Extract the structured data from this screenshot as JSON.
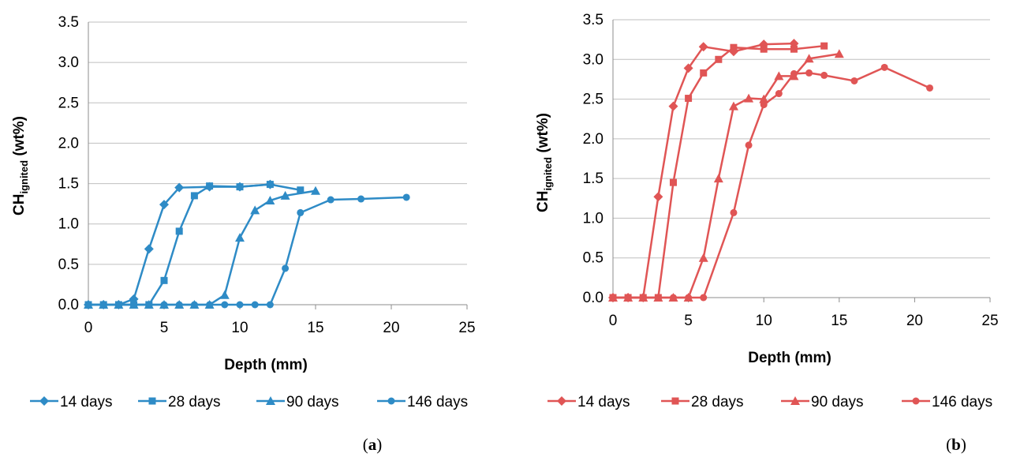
{
  "chart_data": [
    {
      "type": "line",
      "panel_label": {
        "open": "(",
        "letter": "a",
        "close": ")"
      },
      "xlabel": "Depth (mm)",
      "ylabel_main": "CH",
      "ylabel_sub": "ignited",
      "ylabel_tail": " (wt%)",
      "xlim": [
        0,
        25
      ],
      "ylim": [
        0,
        3.5
      ],
      "xticks": [
        "0",
        "5",
        "10",
        "15",
        "20",
        "25"
      ],
      "yticks": [
        "0.0",
        "0.5",
        "1.0",
        "1.5",
        "2.0",
        "2.5",
        "3.0",
        "3.5"
      ],
      "grid": "horizontal",
      "legend_position": "bottom",
      "color": "#2e8bc6",
      "series": [
        {
          "name": "14 days",
          "marker": "diamond",
          "x": [
            0,
            1,
            2,
            3,
            4,
            5,
            6,
            8,
            10,
            12
          ],
          "y": [
            0.0,
            0.0,
            0.0,
            0.07,
            0.69,
            1.24,
            1.45,
            1.46,
            1.46,
            1.49
          ]
        },
        {
          "name": "28 days",
          "marker": "square",
          "x": [
            0,
            1,
            2,
            3,
            4,
            5,
            6,
            7,
            8,
            10,
            12,
            14
          ],
          "y": [
            0.0,
            0.0,
            0.0,
            0.0,
            0.0,
            0.3,
            0.91,
            1.35,
            1.47,
            1.46,
            1.49,
            1.42
          ]
        },
        {
          "name": "90 days",
          "marker": "triangle",
          "x": [
            0,
            1,
            2,
            3,
            4,
            5,
            6,
            7,
            8,
            9,
            10,
            11,
            12,
            13,
            15
          ],
          "y": [
            0.0,
            0.0,
            0.0,
            0.0,
            0.0,
            0.0,
            0.0,
            0.0,
            0.0,
            0.12,
            0.83,
            1.17,
            1.29,
            1.35,
            1.41
          ]
        },
        {
          "name": "146 days",
          "marker": "circle",
          "x": [
            0,
            1,
            2,
            3,
            4,
            5,
            6,
            7,
            8,
            9,
            10,
            11,
            12,
            13,
            14,
            16,
            18,
            21
          ],
          "y": [
            0.0,
            0.0,
            0.0,
            0.0,
            0.0,
            0.0,
            0.0,
            0.0,
            0.0,
            0.0,
            0.0,
            0.0,
            0.0,
            0.45,
            1.14,
            1.3,
            1.31,
            1.33
          ]
        }
      ]
    },
    {
      "type": "line",
      "panel_label": {
        "open": "(",
        "letter": "b",
        "close": ")"
      },
      "xlabel": "Depth (mm)",
      "ylabel_main": "CH",
      "ylabel_sub": "ignited",
      "ylabel_tail": " (wt%)",
      "xlim": [
        0,
        25
      ],
      "ylim": [
        0,
        3.5
      ],
      "xticks": [
        "0",
        "5",
        "10",
        "15",
        "20",
        "25"
      ],
      "yticks": [
        "0.0",
        "0.5",
        "1.0",
        "1.5",
        "2.0",
        "2.5",
        "3.0",
        "3.5"
      ],
      "grid": "horizontal",
      "legend_position": "bottom",
      "color": "#e05555",
      "series": [
        {
          "name": "14 days",
          "marker": "diamond",
          "x": [
            0,
            1,
            2,
            3,
            4,
            5,
            6,
            8,
            10,
            12
          ],
          "y": [
            0.0,
            0.0,
            0.0,
            1.27,
            2.41,
            2.89,
            3.16,
            3.1,
            3.19,
            3.2
          ]
        },
        {
          "name": "28 days",
          "marker": "square",
          "x": [
            0,
            1,
            2,
            3,
            4,
            5,
            6,
            7,
            8,
            10,
            12,
            14
          ],
          "y": [
            0.0,
            0.0,
            0.0,
            0.0,
            1.45,
            2.51,
            2.83,
            3.0,
            3.15,
            3.13,
            3.13,
            3.17
          ]
        },
        {
          "name": "90 days",
          "marker": "triangle",
          "x": [
            0,
            1,
            2,
            3,
            4,
            5,
            6,
            7,
            8,
            9,
            10,
            11,
            12,
            13,
            15
          ],
          "y": [
            0.0,
            0.0,
            0.0,
            0.0,
            0.0,
            0.0,
            0.5,
            1.5,
            2.41,
            2.51,
            2.5,
            2.79,
            2.79,
            3.01,
            3.07
          ]
        },
        {
          "name": "146 days",
          "marker": "circle",
          "x": [
            0,
            1,
            2,
            3,
            4,
            5,
            6,
            8,
            9,
            10,
            11,
            12,
            13,
            14,
            16,
            18,
            21
          ],
          "y": [
            0.0,
            0.0,
            0.0,
            0.0,
            0.0,
            0.0,
            0.0,
            1.07,
            1.92,
            2.43,
            2.57,
            2.82,
            2.83,
            2.8,
            2.73,
            2.9,
            2.64
          ]
        }
      ]
    }
  ]
}
